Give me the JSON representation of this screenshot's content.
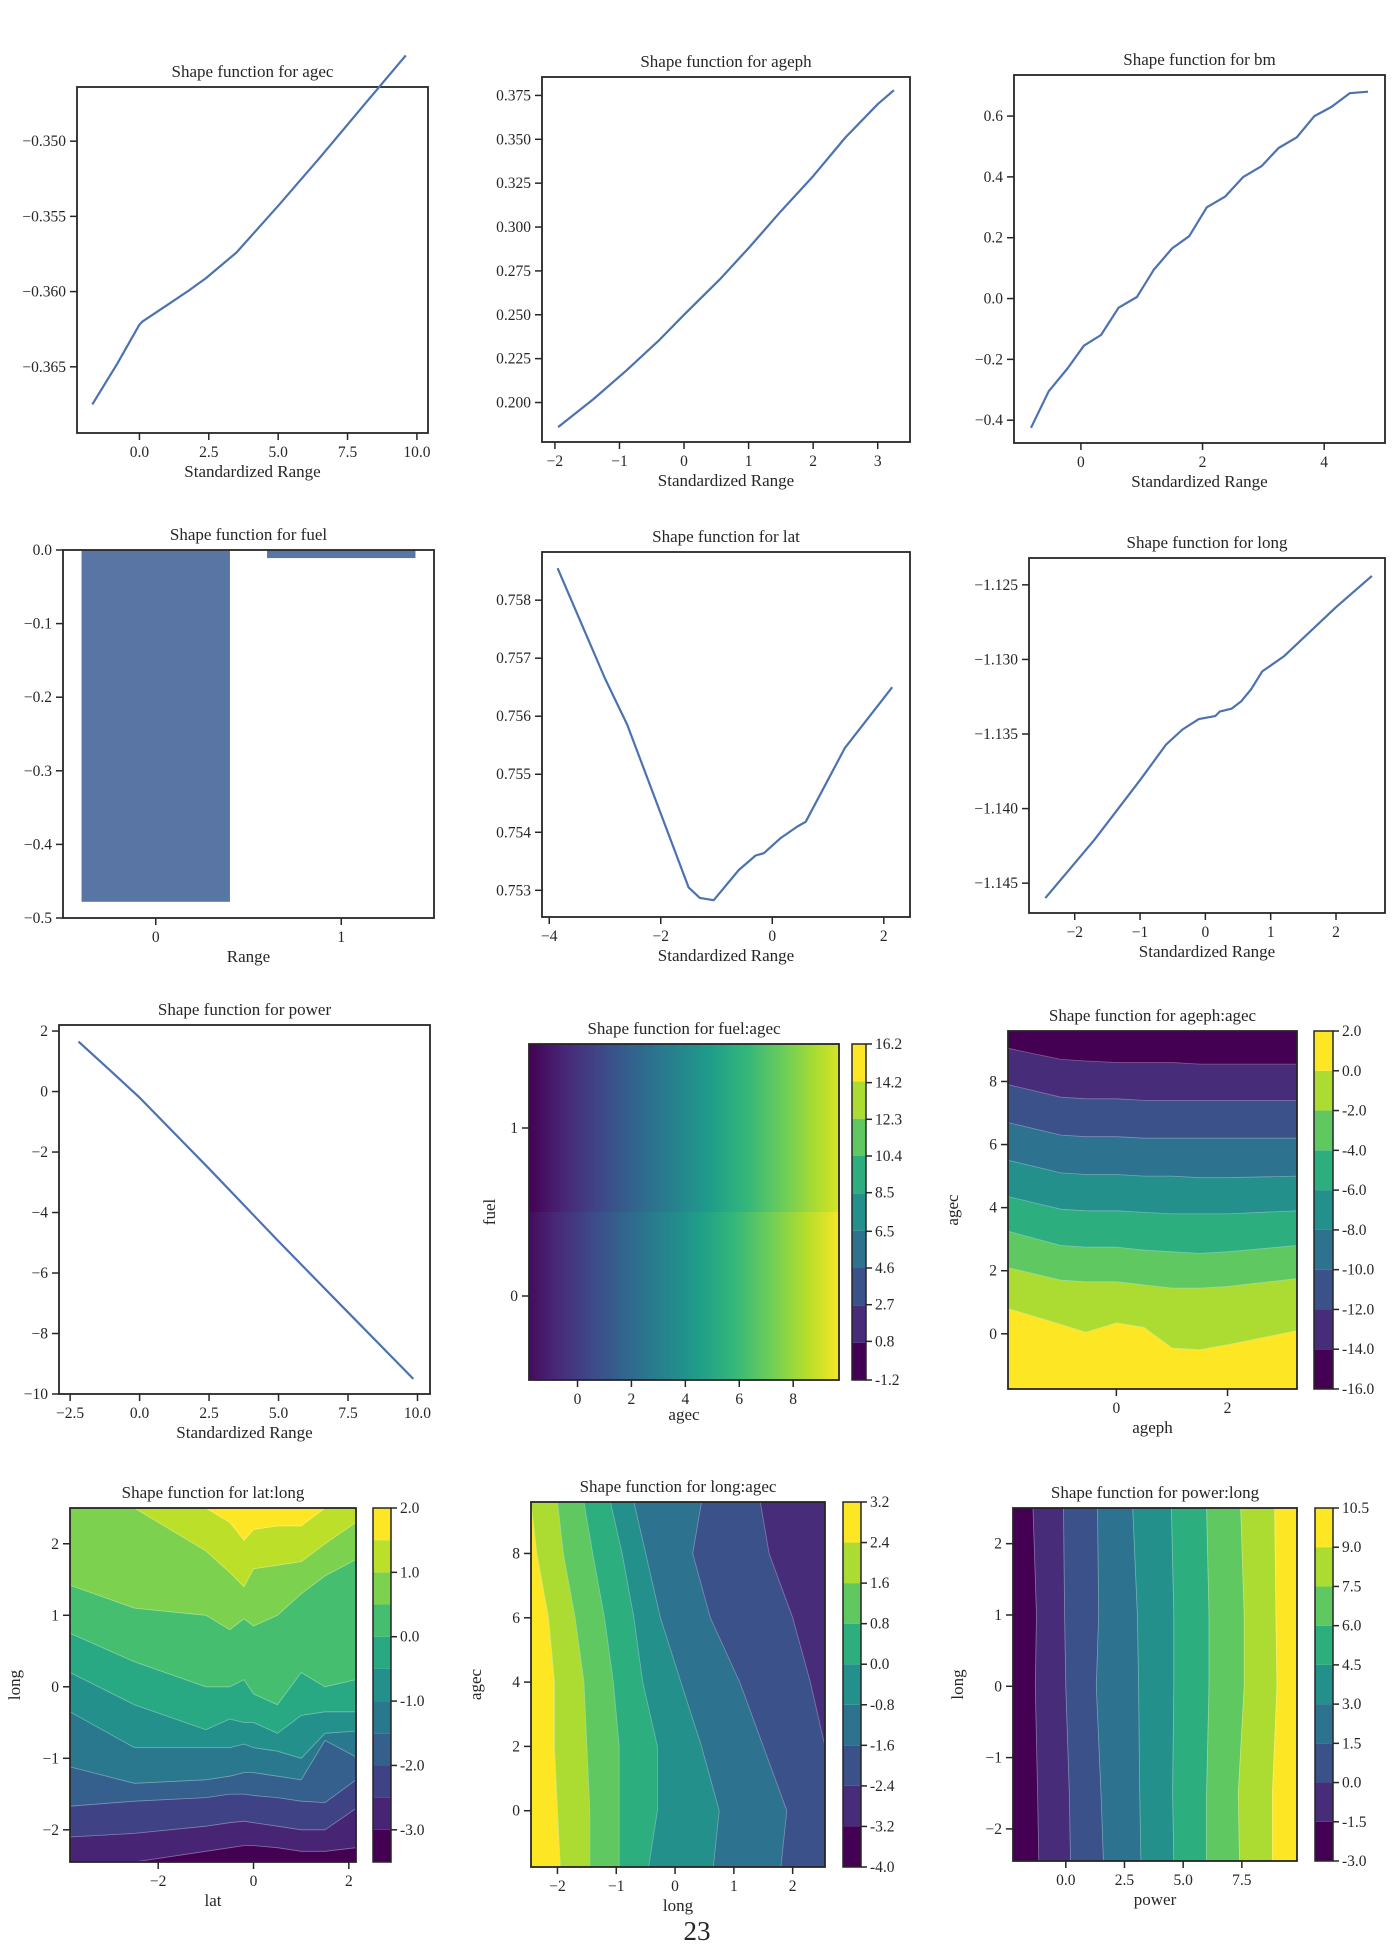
{
  "page_number": "23",
  "chart_data": [
    {
      "id": "agec",
      "type": "line",
      "title": "Shape function for agec",
      "xlabel": "Standardized Range",
      "ylabel": "",
      "xlim": [
        -2.25,
        10.4
      ],
      "ylim": [
        -0.3694,
        -0.3464
      ],
      "xticks": [
        0.0,
        2.5,
        5.0,
        7.5,
        10.0
      ],
      "xtick_labels": [
        "0.0",
        "2.5",
        "5.0",
        "7.5",
        "10.0"
      ],
      "yticks": [
        -0.35,
        -0.355,
        -0.36,
        -0.365
      ],
      "ytick_labels": [
        "−0.350",
        "−0.355",
        "−0.360",
        "−0.365"
      ],
      "x": [
        -1.7,
        -0.8,
        0.0,
        0.1,
        1.0,
        1.8,
        2.4,
        3.5,
        5.0,
        6.5,
        8.0,
        9.6
      ],
      "y": [
        -0.3675,
        -0.3648,
        -0.3622,
        -0.362,
        -0.3609,
        -0.3599,
        -0.3591,
        -0.3574,
        -0.3543,
        -0.3511,
        -0.3478,
        -0.3443
      ]
    },
    {
      "id": "ageph",
      "type": "line",
      "title": "Shape function for ageph",
      "xlabel": "Standardized Range",
      "ylabel": "",
      "xlim": [
        -2.2,
        3.5
      ],
      "ylim": [
        0.1775,
        0.3855
      ],
      "xticks": [
        -2,
        -1,
        0,
        1,
        2,
        3
      ],
      "xtick_labels": [
        "−2",
        "−1",
        "0",
        "1",
        "2",
        "3"
      ],
      "yticks": [
        0.2,
        0.225,
        0.25,
        0.275,
        0.3,
        0.325,
        0.35,
        0.375
      ],
      "ytick_labels": [
        "0.200",
        "0.225",
        "0.250",
        "0.275",
        "0.300",
        "0.325",
        "0.350",
        "0.375"
      ],
      "x": [
        -1.95,
        -1.4,
        -0.9,
        -0.4,
        0.0,
        0.55,
        1.0,
        1.5,
        2.0,
        2.5,
        3.0,
        3.25
      ],
      "y": [
        0.186,
        0.202,
        0.218,
        0.235,
        0.25,
        0.27,
        0.288,
        0.309,
        0.329,
        0.351,
        0.37,
        0.378
      ]
    },
    {
      "id": "bm",
      "type": "line",
      "title": "Shape function for bm",
      "xlabel": "Standardized Range",
      "ylabel": "",
      "xlim": [
        -1.1,
        5.0
      ],
      "ylim": [
        -0.475,
        0.735
      ],
      "xticks": [
        0,
        2,
        4
      ],
      "xtick_labels": [
        "0",
        "2",
        "4"
      ],
      "yticks": [
        -0.4,
        -0.2,
        0.0,
        0.2,
        0.4,
        0.6
      ],
      "ytick_labels": [
        "−0.4",
        "−0.2",
        "0.0",
        "0.2",
        "0.4",
        "0.6"
      ],
      "x": [
        -0.82,
        -0.53,
        -0.22,
        0.05,
        0.33,
        0.62,
        0.92,
        1.2,
        1.5,
        1.78,
        2.07,
        2.37,
        2.67,
        2.97,
        3.25,
        3.55,
        3.84,
        4.12,
        4.42,
        4.72
      ],
      "y": [
        -0.425,
        -0.305,
        -0.23,
        -0.155,
        -0.12,
        -0.03,
        0.005,
        0.095,
        0.165,
        0.205,
        0.3,
        0.335,
        0.4,
        0.435,
        0.495,
        0.53,
        0.6,
        0.63,
        0.675,
        0.68
      ]
    },
    {
      "id": "fuel",
      "type": "bar",
      "title": "Shape function for fuel",
      "xlabel": "Range",
      "ylabel": "",
      "categories": [
        "0",
        "1"
      ],
      "values": [
        -0.478,
        -0.011
      ],
      "ylim": [
        -0.5,
        0.0
      ],
      "xlim": [
        -0.5,
        1.5
      ],
      "yticks": [
        0.0,
        -0.1,
        -0.2,
        -0.3,
        -0.4,
        -0.5
      ],
      "ytick_labels": [
        "0.0",
        "−0.1",
        "−0.2",
        "−0.3",
        "−0.4",
        "−0.5"
      ],
      "bar_color": "#5975a4"
    },
    {
      "id": "lat",
      "type": "line",
      "title": "Shape function for lat",
      "xlabel": "Standardized Range",
      "ylabel": "",
      "xlim": [
        -4.13,
        2.47
      ],
      "ylim": [
        0.75254,
        0.75883
      ],
      "xticks": [
        -4,
        -2,
        0,
        2
      ],
      "xtick_labels": [
        "−4",
        "−2",
        "0",
        "2"
      ],
      "yticks": [
        0.753,
        0.754,
        0.755,
        0.756,
        0.757,
        0.758
      ],
      "ytick_labels": [
        "0.753",
        "0.754",
        "0.755",
        "0.756",
        "0.757",
        "0.758"
      ],
      "x": [
        -3.85,
        -3.0,
        -2.6,
        -1.5,
        -1.3,
        -1.05,
        -0.6,
        -0.3,
        -0.15,
        0.15,
        0.45,
        0.6,
        1.3,
        2.15
      ],
      "y": [
        0.75855,
        0.75665,
        0.75585,
        0.75305,
        0.75287,
        0.75283,
        0.75335,
        0.7536,
        0.75364,
        0.7539,
        0.7541,
        0.75418,
        0.75545,
        0.7565
      ]
    },
    {
      "id": "long",
      "type": "line",
      "title": "Shape function for long",
      "xlabel": "Standardized Range",
      "ylabel": "",
      "xlim": [
        -2.7,
        2.75
      ],
      "ylim": [
        -1.147,
        -1.1232
      ],
      "xticks": [
        -2,
        -1,
        0,
        1,
        2
      ],
      "xtick_labels": [
        "−2",
        "−1",
        "0",
        "1",
        "2"
      ],
      "yticks": [
        -1.125,
        -1.13,
        -1.135,
        -1.14,
        -1.145
      ],
      "ytick_labels": [
        "−1.125",
        "−1.130",
        "−1.135",
        "−1.140",
        "−1.145"
      ],
      "x": [
        -2.45,
        -1.7,
        -1.0,
        -0.6,
        -0.35,
        -0.1,
        0.15,
        0.22,
        0.4,
        0.55,
        0.7,
        0.87,
        1.2,
        2.0,
        2.55
      ],
      "y": [
        -1.146,
        -1.1421,
        -1.1381,
        -1.1357,
        -1.1347,
        -1.134,
        -1.1338,
        -1.1335,
        -1.1333,
        -1.1328,
        -1.132,
        -1.1308,
        -1.1298,
        -1.1265,
        -1.1244
      ]
    },
    {
      "id": "power",
      "type": "line",
      "title": "Shape function for power",
      "xlabel": "Standardized Range",
      "ylabel": "",
      "xlim": [
        -2.9,
        10.45
      ],
      "ylim": [
        -10.0,
        2.2
      ],
      "xticks": [
        -2.5,
        0.0,
        2.5,
        5.0,
        7.5,
        10.0
      ],
      "xtick_labels": [
        "−2.5",
        "0.0",
        "2.5",
        "5.0",
        "7.5",
        "10.0"
      ],
      "yticks": [
        2,
        0,
        -2,
        -4,
        -6,
        -8,
        -10
      ],
      "ytick_labels": [
        "2",
        "0",
        "−2",
        "−4",
        "−6",
        "−8",
        "−10"
      ],
      "x": [
        -2.2,
        -1.0,
        0.0,
        2.5,
        5.0,
        7.5,
        9.85
      ],
      "y": [
        1.65,
        0.65,
        -0.2,
        -2.55,
        -4.95,
        -7.3,
        -9.5
      ]
    },
    {
      "id": "fuel_agec",
      "type": "heatmap",
      "title": "Shape function for fuel:agec",
      "xlabel": "agec",
      "ylabel": "fuel",
      "xlim": [
        -1.8,
        9.7
      ],
      "ylim": [
        -0.5,
        1.5
      ],
      "xticks": [
        0,
        2,
        4,
        6,
        8
      ],
      "xtick_labels": [
        "0",
        "2",
        "4",
        "6",
        "8"
      ],
      "yticks": [
        0,
        1
      ],
      "ytick_labels": [
        "0",
        "1"
      ],
      "colorbar_levels": [
        -1.2,
        0.8,
        2.7,
        4.6,
        6.5,
        8.5,
        10.4,
        12.3,
        14.2,
        16.2
      ],
      "colorbar_labels": [
        "-1.2",
        "0.8",
        "2.7",
        "4.6",
        "6.5",
        "8.5",
        "10.4",
        "12.3",
        "14.2",
        "16.2"
      ],
      "rows": [
        {
          "fuel": 0,
          "value_at_xmin": -0.7,
          "value_at_xmax": 16.0
        },
        {
          "fuel": 1,
          "value_at_xmin": -1.2,
          "value_at_xmax": 15.2
        }
      ],
      "colormap": "viridis",
      "style": "stepped-gradient"
    },
    {
      "id": "ageph_agec",
      "type": "heatmap",
      "title": "Shape function for ageph:agec",
      "xlabel": "ageph",
      "ylabel": "agec",
      "xlim": [
        -1.95,
        3.25
      ],
      "ylim": [
        -1.75,
        9.6
      ],
      "xticks": [
        0,
        2
      ],
      "xtick_labels": [
        "0",
        "2"
      ],
      "yticks": [
        0,
        2,
        4,
        6,
        8
      ],
      "ytick_labels": [
        "0",
        "2",
        "4",
        "6",
        "8"
      ],
      "colorbar_levels": [
        -16.0,
        -14.0,
        -12.0,
        -10.0,
        -8.0,
        -6.0,
        -4.0,
        -2.0,
        0.0,
        2.0
      ],
      "colorbar_labels": [
        "-16.0",
        "-14.0",
        "-12.0",
        "-10.0",
        "-8.0",
        "-6.0",
        "-4.0",
        "-2.0",
        "0.0",
        "2.0"
      ],
      "contour_x": [
        -1.95,
        -1.0,
        -0.55,
        0.0,
        0.5,
        1.0,
        1.5,
        2.0,
        3.25
      ],
      "contour_lines_agec": [
        [
          0.8,
          0.3,
          0.05,
          0.35,
          0.2,
          -0.45,
          -0.5,
          -0.35,
          0.1
        ],
        [
          2.1,
          1.7,
          1.65,
          1.65,
          1.55,
          1.45,
          1.45,
          1.5,
          1.75
        ],
        [
          3.25,
          2.8,
          2.75,
          2.75,
          2.65,
          2.6,
          2.55,
          2.6,
          2.8
        ],
        [
          4.35,
          3.95,
          3.9,
          3.9,
          3.85,
          3.8,
          3.8,
          3.8,
          3.9
        ],
        [
          5.5,
          5.1,
          5.05,
          5.05,
          5.0,
          5.0,
          4.95,
          4.95,
          5.0
        ],
        [
          6.7,
          6.3,
          6.25,
          6.25,
          6.2,
          6.2,
          6.2,
          6.2,
          6.2
        ],
        [
          7.9,
          7.5,
          7.45,
          7.45,
          7.4,
          7.4,
          7.4,
          7.4,
          7.4
        ],
        [
          9.05,
          8.7,
          8.65,
          8.6,
          8.6,
          8.6,
          8.55,
          8.55,
          8.55
        ]
      ],
      "colormap": "viridis",
      "style": "filled-contour"
    },
    {
      "id": "lat_long",
      "type": "heatmap",
      "title": "Shape function for lat:long",
      "xlabel": "lat",
      "ylabel": "long",
      "xlim": [
        -3.85,
        2.15
      ],
      "ylim": [
        -2.45,
        2.5
      ],
      "xticks": [
        -2,
        0,
        2
      ],
      "xtick_labels": [
        "−2",
        "0",
        "2"
      ],
      "yticks": [
        -2,
        -1,
        0,
        1,
        2
      ],
      "ytick_labels": [
        "−2",
        "−1",
        "0",
        "1",
        "2"
      ],
      "colorbar_levels": [
        -3.5,
        -3.0,
        -2.5,
        -2.0,
        -1.5,
        -1.0,
        -0.5,
        0.0,
        0.5,
        1.0,
        1.5,
        2.0
      ],
      "colorbar_labels": [
        "-3.0",
        "-2.0",
        "-1.0",
        "0.0",
        "1.0",
        "2.0"
      ],
      "contour_x": [
        -3.85,
        -2.5,
        -1.0,
        -0.5,
        -0.2,
        0.0,
        0.5,
        1.0,
        1.5,
        2.15
      ],
      "contour_lines_long": [
        [
          -2.45,
          -2.45,
          -2.3,
          -2.25,
          -2.22,
          -2.22,
          -2.25,
          -2.3,
          -2.3,
          -2.25
        ],
        [
          -2.1,
          -2.05,
          -1.95,
          -1.9,
          -1.88,
          -1.9,
          -1.95,
          -2.0,
          -2.0,
          -1.7
        ],
        [
          -1.67,
          -1.6,
          -1.55,
          -1.5,
          -1.5,
          -1.52,
          -1.55,
          -1.6,
          -1.62,
          -1.3
        ],
        [
          -1.12,
          -1.35,
          -1.3,
          -1.25,
          -1.2,
          -1.2,
          -1.25,
          -1.3,
          -0.75,
          -0.98
        ],
        [
          -0.35,
          -0.85,
          -0.85,
          -0.85,
          -0.8,
          -0.85,
          -0.9,
          -1.0,
          -0.65,
          -0.62
        ],
        [
          0.2,
          -0.25,
          -0.6,
          -0.45,
          -0.5,
          -0.5,
          -0.65,
          -0.4,
          -0.35,
          -0.35
        ],
        [
          0.75,
          0.35,
          -0.0,
          0.0,
          0.1,
          -0.1,
          -0.25,
          0.2,
          0.0,
          0.1
        ],
        [
          1.42,
          1.1,
          1.0,
          0.8,
          0.95,
          0.85,
          1.0,
          1.3,
          1.55,
          1.78
        ],
        [
          2.5,
          2.5,
          1.9,
          1.6,
          1.4,
          1.65,
          1.7,
          1.75,
          2.0,
          2.3
        ],
        [
          2.5,
          2.5,
          2.5,
          2.3,
          2.05,
          2.2,
          2.25,
          2.25,
          2.5,
          2.5
        ]
      ],
      "colormap": "viridis",
      "style": "filled-contour"
    },
    {
      "id": "long_agec",
      "type": "heatmap",
      "title": "Shape function for long:agec",
      "xlabel": "long",
      "ylabel": "agec",
      "xlim": [
        -2.45,
        2.55
      ],
      "ylim": [
        -1.75,
        9.6
      ],
      "xticks": [
        -2,
        -1,
        0,
        1,
        2
      ],
      "xtick_labels": [
        "−2",
        "−1",
        "0",
        "1",
        "2"
      ],
      "yticks": [
        0,
        2,
        4,
        6,
        8
      ],
      "ytick_labels": [
        "0",
        "2",
        "4",
        "6",
        "8"
      ],
      "colorbar_levels": [
        -4.0,
        -3.2,
        -2.4,
        -1.6,
        -0.8,
        0.0,
        0.8,
        1.6,
        2.4,
        3.2
      ],
      "colorbar_labels": [
        "-4.0",
        "-3.2",
        "-2.4",
        "-1.6",
        "-0.8",
        "0.0",
        "0.8",
        "1.6",
        "2.4",
        "3.2"
      ],
      "contour_y": [
        -1.75,
        0.0,
        2.0,
        4.0,
        6.0,
        8.0,
        9.6
      ],
      "contour_lines_long": [
        [
          -1.95,
          -2.0,
          -2.05,
          -2.05,
          -2.15,
          -2.35,
          -2.45
        ],
        [
          -1.45,
          -1.45,
          -1.5,
          -1.55,
          -1.7,
          -1.9,
          -2.0
        ],
        [
          -0.95,
          -0.95,
          -0.95,
          -1.05,
          -1.2,
          -1.4,
          -1.55
        ],
        [
          -0.45,
          -0.3,
          -0.3,
          -0.55,
          -0.7,
          -0.9,
          -1.1
        ],
        [
          0.65,
          0.75,
          0.45,
          0.1,
          -0.25,
          -0.5,
          -0.7
        ],
        [
          1.8,
          1.9,
          1.5,
          1.1,
          0.6,
          0.3,
          0.45
        ],
        [
          2.55,
          2.55,
          2.55,
          2.3,
          2.0,
          1.6,
          1.45
        ]
      ],
      "colormap": "viridis",
      "style": "filled-contour"
    },
    {
      "id": "power_long",
      "type": "heatmap",
      "title": "Shape function for power:long",
      "xlabel": "power",
      "ylabel": "long",
      "xlim": [
        -2.25,
        9.85
      ],
      "ylim": [
        -2.45,
        2.5
      ],
      "xticks": [
        0.0,
        2.5,
        5.0,
        7.5
      ],
      "xtick_labels": [
        "0.0",
        "2.5",
        "5.0",
        "7.5"
      ],
      "yticks": [
        -2,
        -1,
        0,
        1,
        2
      ],
      "ytick_labels": [
        "−2",
        "−1",
        "0",
        "1",
        "2"
      ],
      "colorbar_levels": [
        -3.0,
        -1.5,
        0.0,
        1.5,
        3.0,
        4.5,
        6.0,
        7.5,
        9.0,
        10.5
      ],
      "colorbar_labels": [
        "-3.0",
        "-1.5",
        "0.0",
        "1.5",
        "3.0",
        "4.5",
        "6.0",
        "7.5",
        "9.0",
        "10.5"
      ],
      "contour_y": [
        -2.45,
        -1.5,
        0.0,
        1.0,
        2.5
      ],
      "contour_lines_power": [
        [
          -1.15,
          -1.2,
          -1.3,
          -1.25,
          -1.4
        ],
        [
          0.2,
          0.15,
          0.0,
          -0.05,
          -0.1
        ],
        [
          1.6,
          1.5,
          1.3,
          1.4,
          1.35
        ],
        [
          3.2,
          3.15,
          3.1,
          3.05,
          2.85
        ],
        [
          4.6,
          4.55,
          4.6,
          4.6,
          4.5
        ],
        [
          6.0,
          6.0,
          6.1,
          6.1,
          6.0
        ],
        [
          7.4,
          7.35,
          7.6,
          7.6,
          7.45
        ],
        [
          8.8,
          8.8,
          9.0,
          8.95,
          8.9
        ]
      ],
      "colormap": "viridis",
      "style": "filled-contour"
    }
  ]
}
